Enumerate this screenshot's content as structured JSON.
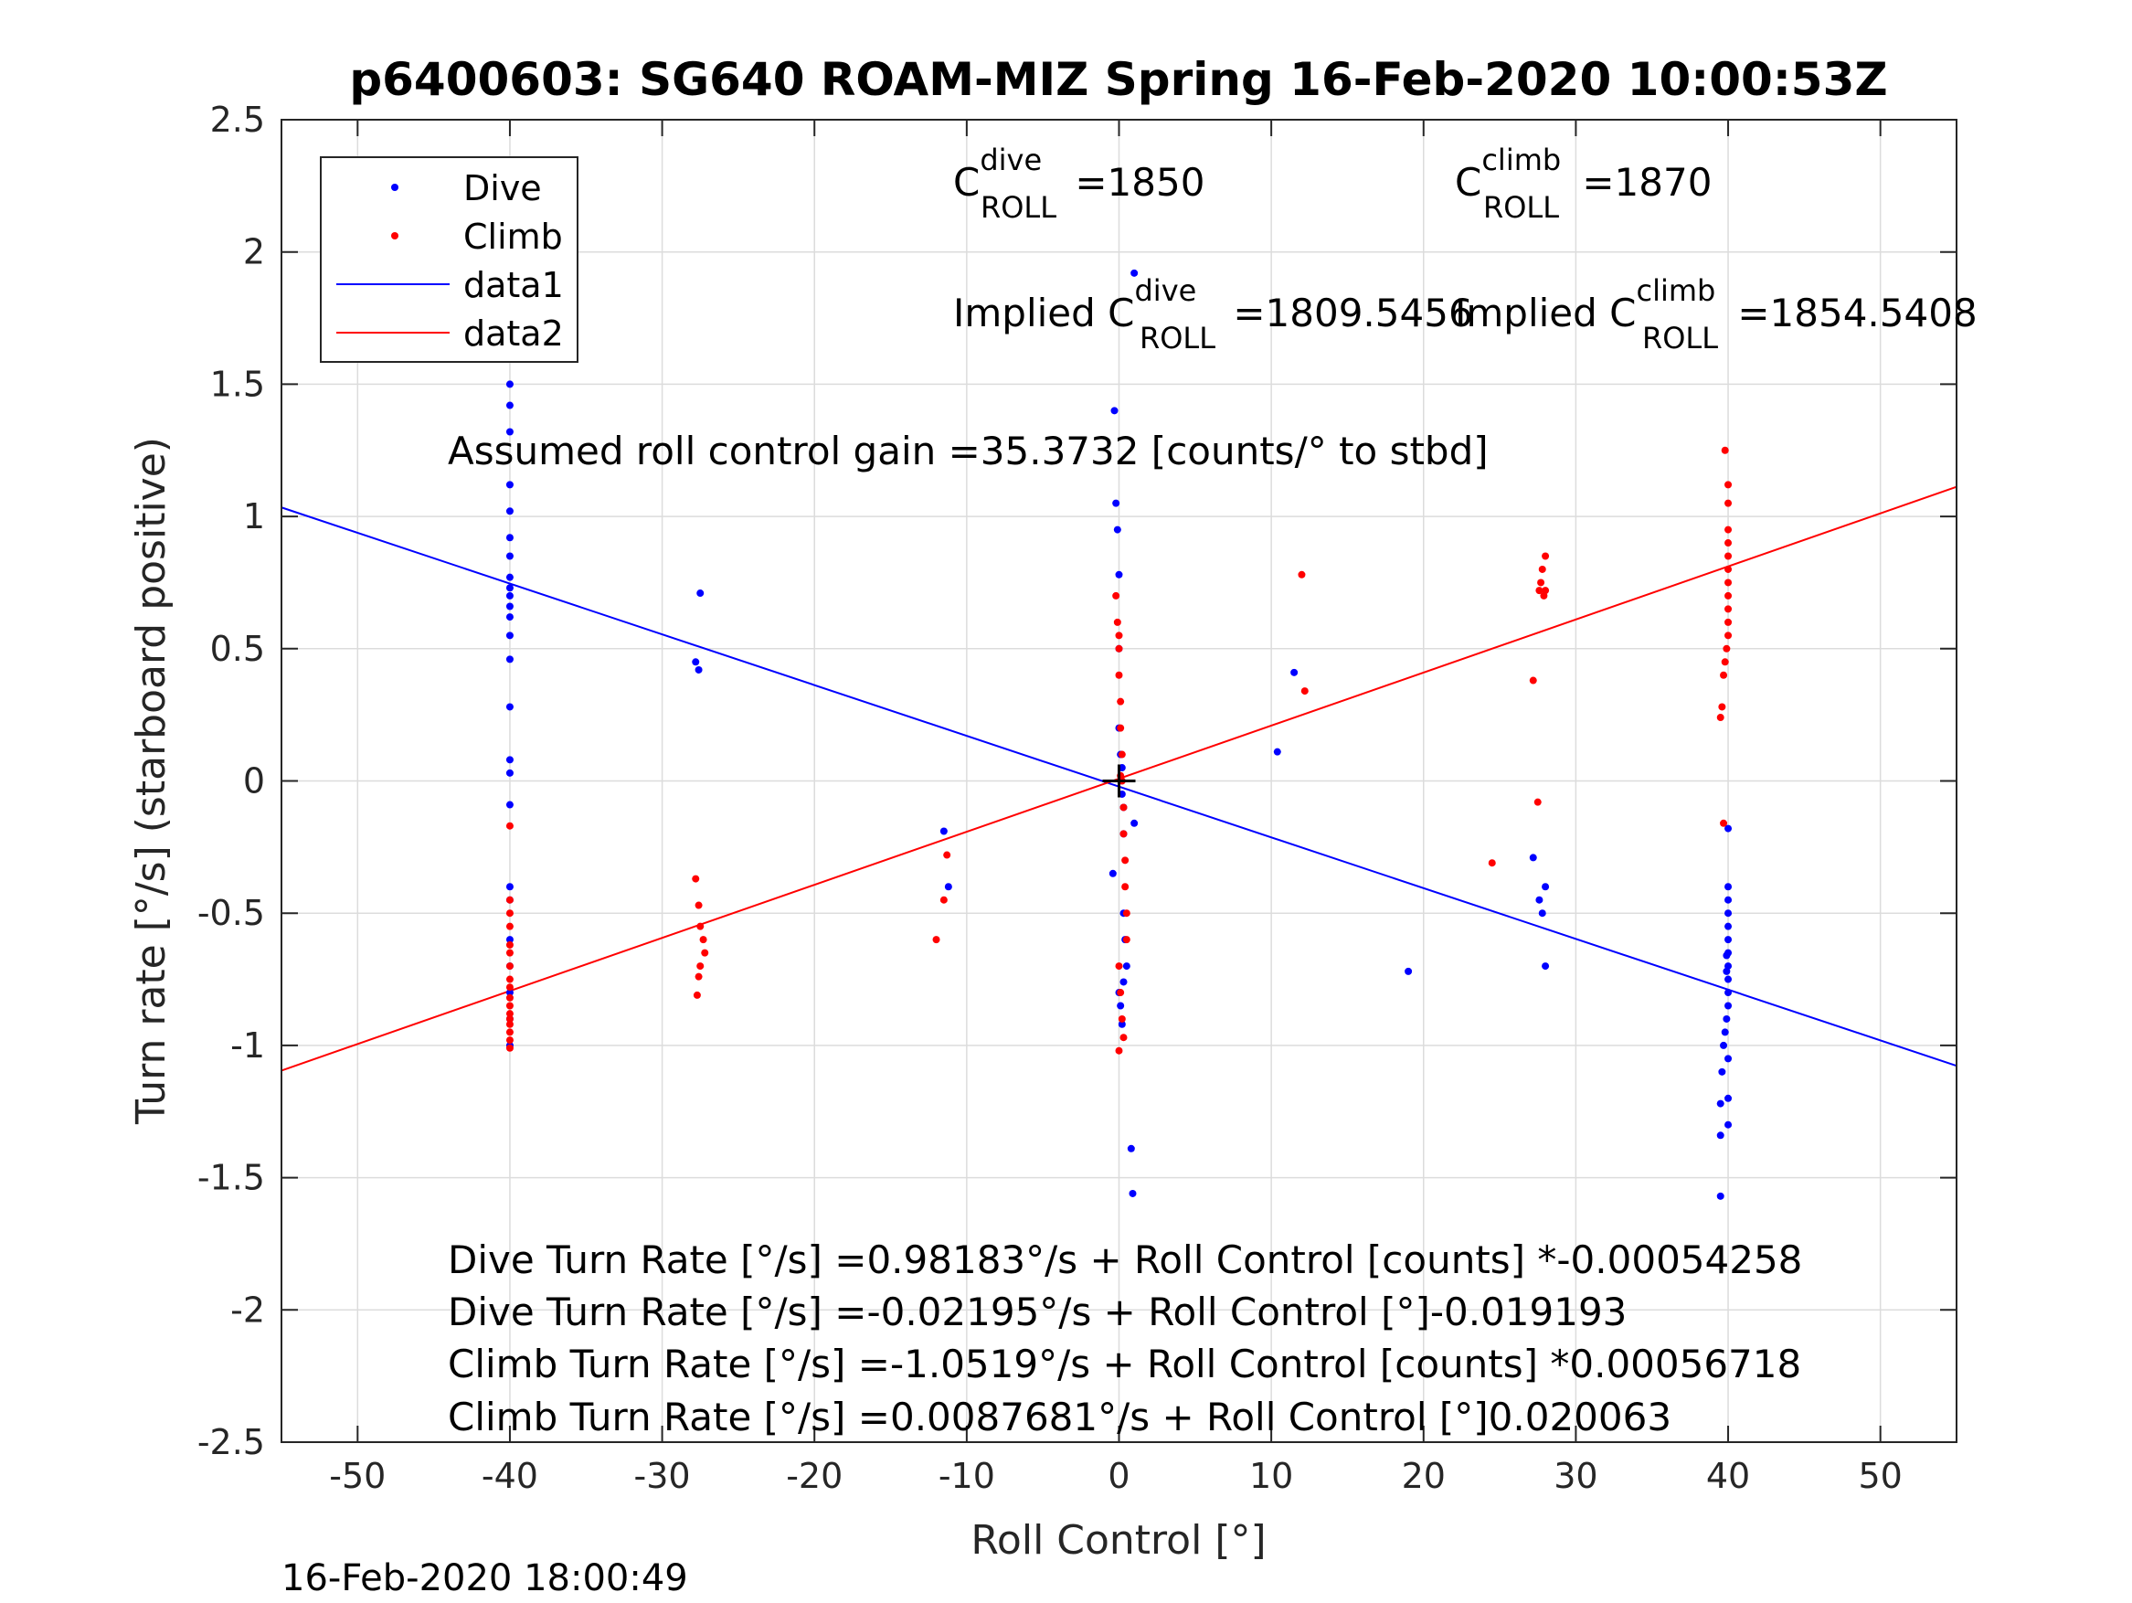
{
  "chart_data": {
    "type": "scatter",
    "title": "p6400603: SG640 ROAM-MIZ Spring 16-Feb-2020 10:00:53Z",
    "xlabel": "Roll Control [°]",
    "ylabel": "Turn rate [°/s] (starboard positive)",
    "xlim": [
      -55,
      55
    ],
    "ylim": [
      -2.5,
      2.5
    ],
    "xticks": [
      -50,
      -40,
      -30,
      -20,
      -10,
      0,
      10,
      20,
      30,
      40,
      50
    ],
    "xtick_labels": [
      "-50",
      "-40",
      "-30",
      "-20",
      "-10",
      "0",
      "10",
      "20",
      "30",
      "40",
      "50"
    ],
    "yticks": [
      -2.5,
      -2,
      -1.5,
      -1,
      -0.5,
      0,
      0.5,
      1,
      1.5,
      2,
      2.5
    ],
    "ytick_labels": [
      "-2.5",
      "-2",
      "-1.5",
      "-1",
      "-0.5",
      "0",
      "0.5",
      "1",
      "1.5",
      "2",
      "2.5"
    ],
    "grid": true,
    "legend_position": "top-left",
    "legend": [
      "Dive",
      "Climb",
      "data1",
      "data2"
    ],
    "series": [
      {
        "name": "Dive",
        "style": "points",
        "color": "#0000ff",
        "x": [
          -40,
          -40,
          -40,
          -40,
          -40,
          -40,
          -40,
          -40,
          -40,
          -40,
          -40,
          -40,
          -40,
          -40,
          -40,
          -40,
          -40,
          -40,
          -40,
          -40,
          -40,
          -40,
          -40,
          -40,
          -40,
          -40,
          -27.8,
          -27.6,
          -27.5,
          -11.5,
          -11.2,
          -0.4,
          -0.3,
          -0.2,
          -0.1,
          0,
          0,
          0,
          0.1,
          0.2,
          0.2,
          0.3,
          0.3,
          0.3,
          0.4,
          0.5,
          0,
          0.1,
          0.2,
          0.3,
          1,
          1,
          0.8,
          0.9,
          10.4,
          11.5,
          19,
          27.2,
          27.6,
          27.8,
          28,
          28,
          39.5,
          39.5,
          39.5,
          39.6,
          39.7,
          39.8,
          39.9,
          40,
          40,
          40,
          40,
          40,
          40,
          40,
          40,
          40,
          40,
          40,
          40,
          40,
          40,
          39.9,
          39.9
        ],
        "y": [
          1.62,
          1.5,
          1.42,
          1.32,
          1.12,
          1.02,
          0.92,
          0.85,
          0.77,
          0.73,
          0.7,
          0.66,
          0.62,
          0.55,
          0.46,
          0.28,
          0.08,
          0.03,
          -0.09,
          -0.4,
          -0.45,
          -0.6,
          -0.7,
          -0.8,
          -0.9,
          -1.0,
          0.45,
          0.42,
          0.71,
          -0.19,
          -0.4,
          -0.35,
          1.4,
          1.05,
          0.95,
          0.78,
          0.5,
          0.2,
          0.1,
          0.05,
          -0.05,
          -0.1,
          -0.2,
          -0.5,
          -0.6,
          -0.7,
          -0.8,
          -0.85,
          -0.92,
          -0.76,
          -0.16,
          1.92,
          -1.39,
          -1.56,
          0.11,
          0.41,
          -0.72,
          -0.29,
          -0.45,
          -0.5,
          -0.4,
          -0.7,
          -1.57,
          -1.34,
          -1.22,
          -1.1,
          -1.0,
          -0.95,
          -0.9,
          -0.85,
          -0.8,
          -0.75,
          -0.7,
          -0.65,
          -0.6,
          -0.55,
          -0.5,
          -0.45,
          -0.4,
          -0.18,
          -1.05,
          -1.2,
          -1.3,
          -0.66,
          -0.72
        ]
      },
      {
        "name": "Climb",
        "style": "points",
        "color": "#ff0000",
        "x": [
          -40,
          -40,
          -40,
          -40,
          -40,
          -40,
          -40,
          -40,
          -40,
          -40,
          -40,
          -40,
          -40,
          -40,
          -40,
          -40,
          -40,
          -27.8,
          -27.6,
          -27.5,
          -27.3,
          -27.2,
          -27.5,
          -27.6,
          -27.7,
          -12,
          -11.5,
          -11.3,
          -0.2,
          -0.1,
          0,
          0,
          0,
          0.1,
          0.1,
          0.2,
          0.2,
          0.3,
          0.3,
          0.4,
          0.4,
          0.5,
          0.5,
          0,
          0.1,
          0.2,
          0.3,
          0,
          0.1,
          12,
          12.2,
          24.5,
          27.2,
          27.5,
          27.6,
          27.7,
          27.8,
          28,
          28,
          27.9,
          39.5,
          39.6,
          39.7,
          39.8,
          39.9,
          40,
          40,
          40,
          40,
          40,
          40,
          40,
          40,
          40,
          40,
          40,
          39.8,
          39.7
        ],
        "y": [
          -0.17,
          -0.5,
          -0.55,
          -0.62,
          -0.65,
          -0.7,
          -0.75,
          -0.78,
          -0.82,
          -0.85,
          -0.88,
          -0.9,
          -0.92,
          -0.95,
          -0.98,
          -1.01,
          -0.45,
          -0.37,
          -0.47,
          -0.55,
          -0.6,
          -0.65,
          -0.7,
          -0.74,
          -0.81,
          -0.6,
          -0.45,
          -0.28,
          0.7,
          0.6,
          0.55,
          0.5,
          0.4,
          0.3,
          0.2,
          0.1,
          0.0,
          -0.1,
          -0.2,
          -0.3,
          -0.4,
          -0.5,
          -0.6,
          -0.7,
          -0.8,
          -0.9,
          -0.97,
          -1.02,
          0.02,
          0.78,
          0.34,
          -0.31,
          0.38,
          -0.08,
          0.72,
          0.75,
          0.8,
          0.85,
          0.72,
          0.7,
          0.24,
          0.28,
          0.4,
          0.45,
          0.5,
          0.55,
          0.6,
          0.65,
          0.7,
          0.75,
          0.8,
          0.85,
          0.9,
          0.95,
          1.05,
          1.12,
          1.25,
          -0.16
        ]
      },
      {
        "name": "data1",
        "style": "line",
        "color": "#0000ff",
        "x": [
          -55,
          55
        ],
        "y": [
          1.034,
          -1.077
        ]
      },
      {
        "name": "data2",
        "style": "line",
        "color": "#ff0000",
        "x": [
          -55,
          55
        ],
        "y": [
          -1.095,
          1.112
        ]
      }
    ],
    "annotations": [
      {
        "base": "C",
        "sup": "dive",
        "sub": "ROLL",
        "text": " =1850"
      },
      {
        "base": "C",
        "sup": "climb",
        "sub": "ROLL",
        "text": " =1870"
      },
      {
        "prefix": "Implied C",
        "sup": "dive",
        "sub": "ROLL",
        "text": " =1809.5456"
      },
      {
        "prefix": "Implied C",
        "sup": "climb",
        "sub": "ROLL",
        "text": " =1854.5408"
      },
      {
        "text": "Assumed roll control gain =35.3732 [counts/° to stbd]"
      },
      {
        "text": "Dive Turn Rate [°/s] =0.98183°/s + Roll Control [counts] *-0.00054258"
      },
      {
        "text": "Dive Turn Rate [°/s] =-0.02195°/s + Roll Control [°]-0.019193"
      },
      {
        "text": "Climb Turn Rate [°/s] =-1.0519°/s + Roll Control [counts] *0.00056718"
      },
      {
        "text": "Climb Turn Rate [°/s] =0.0087681°/s + Roll Control [°]0.020063"
      }
    ],
    "center_marker": {
      "x": 0,
      "y": 0,
      "symbol": "+",
      "color": "#000000"
    },
    "timestamp": "16-Feb-2020 18:00:49"
  }
}
